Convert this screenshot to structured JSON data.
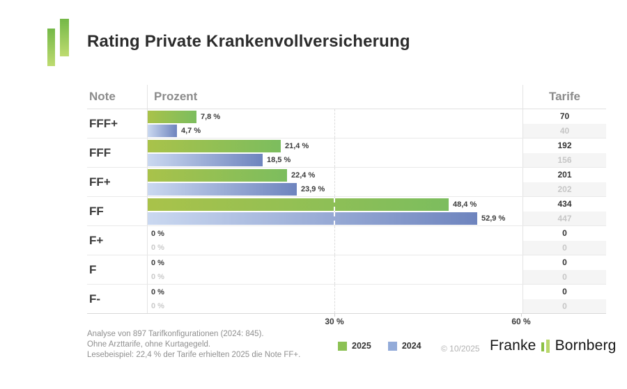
{
  "header": {
    "title": "Rating Private Krankenvollversicherung"
  },
  "table": {
    "headers": {
      "note": "Note",
      "prozent": "Prozent",
      "tarife": "Tarife"
    },
    "rows": [
      {
        "note": "FFF+",
        "bars": [
          {
            "year": "2025",
            "pct": 7.8,
            "label": "7,8 %",
            "tarife": "70"
          },
          {
            "year": "2024",
            "pct": 4.7,
            "label": "4,7 %",
            "tarife": "40"
          }
        ]
      },
      {
        "note": "FFF",
        "bars": [
          {
            "year": "2025",
            "pct": 21.4,
            "label": "21,4 %",
            "tarife": "192"
          },
          {
            "year": "2024",
            "pct": 18.5,
            "label": "18,5 %",
            "tarife": "156"
          }
        ]
      },
      {
        "note": "FF+",
        "bars": [
          {
            "year": "2025",
            "pct": 22.4,
            "label": "22,4 %",
            "tarife": "201"
          },
          {
            "year": "2024",
            "pct": 23.9,
            "label": "23,9 %",
            "tarife": "202"
          }
        ]
      },
      {
        "note": "FF",
        "bars": [
          {
            "year": "2025",
            "pct": 48.4,
            "label": "48,4 %",
            "tarife": "434"
          },
          {
            "year": "2024",
            "pct": 52.9,
            "label": "52,9 %",
            "tarife": "447"
          }
        ]
      },
      {
        "note": "F+",
        "bars": [
          {
            "year": "2025",
            "pct": 0,
            "label": "0 %",
            "tarife": "0"
          },
          {
            "year": "2024",
            "pct": 0,
            "label": "0 %",
            "tarife": "0"
          }
        ]
      },
      {
        "note": "F",
        "bars": [
          {
            "year": "2025",
            "pct": 0,
            "label": "0 %",
            "tarife": "0"
          },
          {
            "year": "2024",
            "pct": 0,
            "label": "0 %",
            "tarife": "0"
          }
        ]
      },
      {
        "note": "F-",
        "bars": [
          {
            "year": "2025",
            "pct": 0,
            "label": "0 %",
            "tarife": "0"
          },
          {
            "year": "2024",
            "pct": 0,
            "label": "0 %",
            "tarife": "0"
          }
        ]
      }
    ]
  },
  "axis": {
    "ticks": [
      {
        "pct": 30,
        "label": "30 %"
      },
      {
        "pct": 60,
        "label": "60 %"
      }
    ]
  },
  "footer": {
    "notes": [
      "Analyse von 897 Tarifkonfigurationen (2024: 845).",
      "Ohne Arzttarife, ohne Kurtagegeld.",
      "Lesebeispiel: 22,4 % der Tarife erhielten 2025 die Note FF+."
    ],
    "legend": [
      {
        "label": "2025",
        "color": "#8cc154"
      },
      {
        "label": "2024",
        "color": "#93abd9"
      }
    ],
    "copyright": "© 10/2025",
    "brand": {
      "first": "Franke",
      "second": "Bornberg"
    }
  },
  "colors": {
    "green_gradient_start": "#a9c24a",
    "green_gradient_end": "#7cbd5e",
    "blue_gradient_start": "#cad8f0",
    "blue_gradient_end": "#6e84be",
    "logo_green_top": "#74b847",
    "logo_green_bottom": "#bedb70"
  },
  "chart_data": {
    "type": "bar",
    "orientation": "horizontal",
    "title": "Rating Private Krankenvollversicherung",
    "categories": [
      "FFF+",
      "FFF",
      "FF+",
      "FF",
      "F+",
      "F",
      "F-"
    ],
    "series": [
      {
        "name": "2025",
        "values_pct": [
          7.8,
          21.4,
          22.4,
          48.4,
          0,
          0,
          0
        ],
        "tarife_counts": [
          70,
          192,
          201,
          434,
          0,
          0,
          0
        ],
        "color": "#8cc154"
      },
      {
        "name": "2024",
        "values_pct": [
          4.7,
          18.5,
          23.9,
          52.9,
          0,
          0,
          0
        ],
        "tarife_counts": [
          40,
          156,
          202,
          447,
          0,
          0,
          0
        ],
        "color": "#93abd9"
      }
    ],
    "xlabel": "Prozent",
    "ylabel": "Note",
    "value_column_label": "Tarife",
    "x_ticks_pct": [
      30,
      60
    ],
    "xlim": [
      0,
      60.5
    ],
    "gridline_pct": 30,
    "legend_position": "bottom",
    "annotations": [
      "Analyse von 897 Tarifkonfigurationen (2024: 845).",
      "Ohne Arzttarife, ohne Kurtagegeld.",
      "Lesebeispiel: 22,4 % der Tarife erhielten 2025 die Note FF+."
    ]
  }
}
